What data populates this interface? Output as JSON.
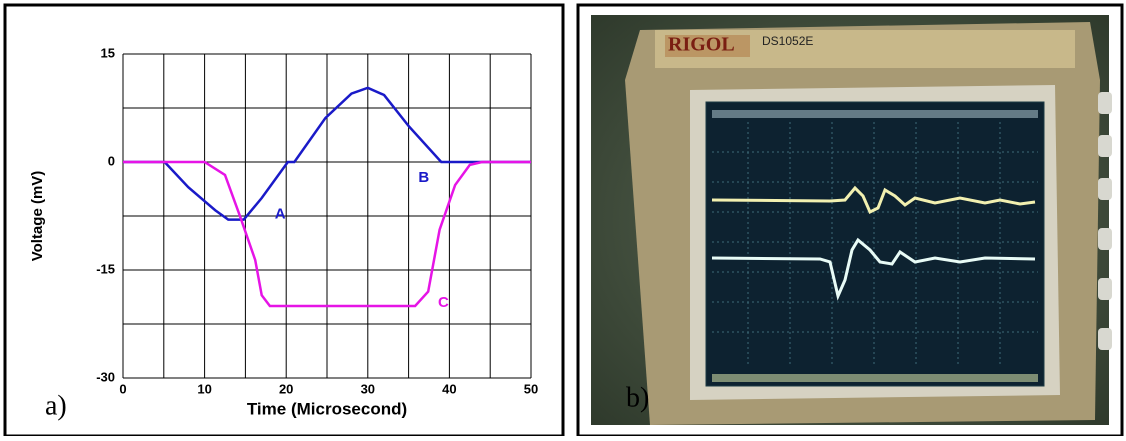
{
  "chart_data": {
    "type": "line",
    "x_label": "Time (Microsecond)",
    "y_label": "Voltage (mV)",
    "xlim": [
      0,
      50
    ],
    "ylim": [
      -30,
      15
    ],
    "xticks": [
      0,
      10,
      20,
      30,
      40,
      50
    ],
    "yticks": [
      -30,
      -15,
      0,
      15
    ],
    "xgrid": [
      0,
      5,
      10,
      15,
      20,
      25,
      30,
      35,
      40,
      45,
      50
    ],
    "ygrid": [
      -30,
      -22.5,
      -15,
      -7.5,
      0,
      7.5,
      15
    ],
    "grid": true,
    "series": [
      {
        "name": "A",
        "color": "#1a1ac8",
        "x": [
          0,
          5.1,
          8,
          11.3,
          12.9,
          14.8,
          17,
          20.2,
          21,
          24.8,
          28,
          30,
          32,
          35,
          39,
          44,
          50
        ],
        "values": [
          0,
          0,
          -3.5,
          -6.7,
          -8,
          -8,
          -5,
          0,
          0,
          6.1,
          9.5,
          10.3,
          9.3,
          5,
          0,
          0,
          0
        ]
      },
      {
        "name": "C",
        "color": "#e614e6",
        "x": [
          0,
          10,
          12.5,
          14.3,
          16.2,
          17,
          18,
          35.8,
          37.4,
          38.8,
          40.7,
          42.5,
          44,
          50
        ],
        "values": [
          0,
          0,
          -1.8,
          -7.4,
          -13.6,
          -18.5,
          -20,
          -20,
          -18,
          -9.4,
          -3.2,
          -0.4,
          0,
          0
        ]
      }
    ],
    "annotations": [
      "A",
      "B",
      "C"
    ]
  },
  "chart_label": "a)",
  "photo": {
    "brand": "RIGOL",
    "model": "DS1052E",
    "label": "b)"
  }
}
